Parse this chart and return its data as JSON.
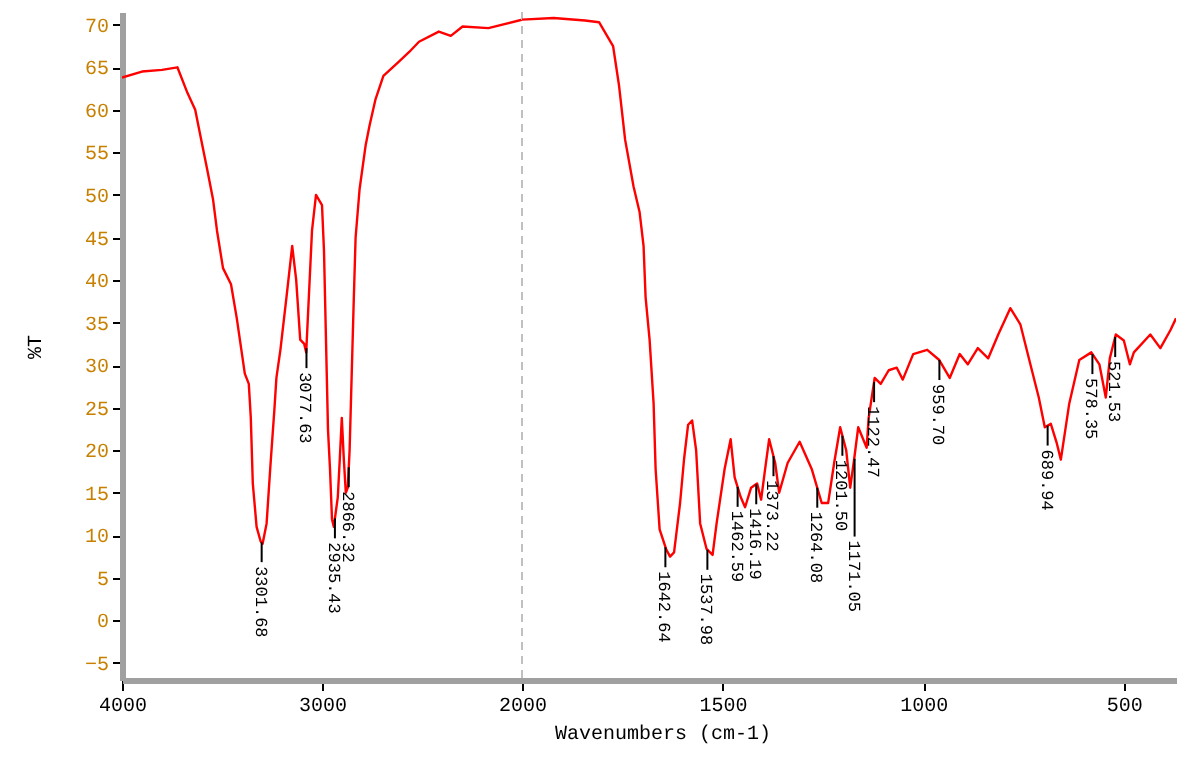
{
  "chart_data": [
    {
      "type": "line",
      "ylabel": "%T",
      "xlim": [
        4000,
        2000
      ],
      "ylim": [
        -7,
        71.5
      ],
      "xticks": [
        4000,
        3000,
        2000
      ],
      "yticks": [
        -5,
        0,
        5,
        10,
        15,
        20,
        25,
        30,
        35,
        40,
        45,
        50,
        55,
        60,
        65,
        70
      ],
      "grid": false,
      "marker": "none",
      "line_style": "solid",
      "ref_lines": [
        {
          "axis": "x",
          "value": 2000,
          "color": "#c0c0c0",
          "line_style": "dashed"
        }
      ],
      "series": [
        {
          "color": "#ff0000",
          "x": [
            4000,
            3900,
            3800,
            3723,
            3673,
            3634,
            3604,
            3574,
            3545,
            3525,
            3495,
            3455,
            3426,
            3386,
            3366,
            3356,
            3346,
            3327,
            3307,
            3297,
            3277,
            3257,
            3238,
            3228,
            3208,
            3178,
            3149,
            3129,
            3109,
            3089,
            3079,
            3050,
            3030,
            3000,
            2990,
            2970,
            2960,
            2950,
            2941,
            2921,
            2911,
            2901,
            2891,
            2881,
            2871,
            2862,
            2852,
            2842,
            2832,
            2812,
            2782,
            2762,
            2733,
            2693,
            2614,
            2564,
            2515,
            2416,
            2356,
            2297,
            2168,
            2000
          ],
          "values": [
            63.8,
            64.5,
            64.7,
            65,
            62,
            60,
            56.5,
            53,
            49.5,
            45.8,
            41.4,
            39.5,
            35.5,
            29,
            27.8,
            23.8,
            16.1,
            11,
            9.3,
            9,
            11.4,
            18.5,
            24.8,
            28.5,
            31.8,
            37.9,
            44,
            40,
            33,
            32.5,
            31.5,
            45.8,
            50,
            48.8,
            43.4,
            22.4,
            17.8,
            11.9,
            11,
            14.5,
            19,
            23.8,
            19,
            15,
            15.6,
            20,
            28.5,
            37,
            45,
            50.7,
            55.8,
            58.2,
            61.2,
            64,
            65.7,
            66.8,
            68,
            69.2,
            68.7,
            69.8,
            69.6,
            70.6
          ]
        }
      ],
      "annotations": [
        {
          "text": "3301.68",
          "x": 3301.68,
          "y": 9.2
        },
        {
          "text": "3077.63",
          "x": 3077.63,
          "y": 32
        },
        {
          "text": "2935.43",
          "x": 2935.43,
          "y": 12
        },
        {
          "text": "2866.32",
          "x": 2866.32,
          "y": 18
        }
      ]
    },
    {
      "type": "line",
      "xlabel": "Wavenumbers (cm-1)",
      "xlim": [
        2000,
        370
      ],
      "ylim": [
        -7,
        71.5
      ],
      "xticks": [
        1500,
        1000,
        500
      ],
      "tick_labels": "x",
      "grid": false,
      "marker": "none",
      "line_style": "solid",
      "series": [
        {
          "color": "#ff0000",
          "x": [
            2000,
            1921,
            1843,
            1808,
            1773,
            1758,
            1743,
            1722,
            1707,
            1697,
            1692,
            1682,
            1672,
            1667,
            1657,
            1641,
            1631,
            1621,
            1606,
            1596,
            1586,
            1576,
            1566,
            1556,
            1540,
            1525,
            1515,
            1495,
            1480,
            1470,
            1455,
            1444,
            1429,
            1414,
            1404,
            1394,
            1384,
            1369,
            1359,
            1338,
            1308,
            1278,
            1253,
            1237,
            1222,
            1207,
            1192,
            1182,
            1172,
            1162,
            1141,
            1136,
            1121,
            1106,
            1086,
            1066,
            1051,
            1025,
            990,
            960,
            934,
            909,
            889,
            864,
            838,
            813,
            783,
            758,
            733,
            712,
            697,
            682,
            667,
            657,
            636,
            611,
            581,
            561,
            545,
            535,
            520,
            500,
            485,
            475,
            434,
            409,
            384,
            370
          ],
          "values": [
            70.6,
            70.8,
            70.5,
            70.3,
            67.5,
            62.8,
            56.5,
            51,
            48,
            44,
            38,
            33,
            25.5,
            17.8,
            10.7,
            8.4,
            7.5,
            8,
            13.8,
            19,
            23,
            23.5,
            20,
            11.4,
            8.4,
            7.7,
            11.4,
            17.8,
            21.3,
            16.8,
            14.5,
            13.3,
            15.6,
            16.1,
            14.2,
            17.8,
            21.3,
            18.5,
            15,
            18.5,
            21,
            17.8,
            13.8,
            13.8,
            18.5,
            22.7,
            20,
            15.6,
            19,
            22.7,
            20.3,
            23.8,
            28.5,
            27.8,
            29.4,
            29.7,
            28.3,
            31.3,
            31.8,
            30.6,
            28.5,
            31.3,
            30.1,
            32,
            30.8,
            33.6,
            36.7,
            34.8,
            30.1,
            26.2,
            22.7,
            23.1,
            20.8,
            18.9,
            25.5,
            30.6,
            31.5,
            30.1,
            26.2,
            30.8,
            33.6,
            32.9,
            30.1,
            31.5,
            33.6,
            32,
            34.1,
            35.5
          ]
        }
      ],
      "annotations": [
        {
          "text": "1642.64",
          "x": 1642.64,
          "y": 8.6
        },
        {
          "text": "1537.98",
          "x": 1537.98,
          "y": 8.3
        },
        {
          "text": "1462.59",
          "x": 1462.59,
          "y": 15.7
        },
        {
          "text": "1416.19",
          "x": 1416.19,
          "y": 16
        },
        {
          "text": "1373.22",
          "x": 1373.22,
          "y": 19.3
        },
        {
          "text": "1264.08",
          "x": 1264.08,
          "y": 15.6
        },
        {
          "text": "1201.50",
          "x": 1201.5,
          "y": 21.7
        },
        {
          "text": "1171.05",
          "x": 1171.05,
          "y": 19
        },
        {
          "text": "1122.47",
          "x": 1122.47,
          "y": 28
        },
        {
          "text": "959.70",
          "x": 959.7,
          "y": 30.6
        },
        {
          "text": "689.94",
          "x": 689.94,
          "y": 22.9
        },
        {
          "text": "578.35",
          "x": 578.35,
          "y": 31.3
        },
        {
          "text": "521.53",
          "x": 521.53,
          "y": 33.3
        }
      ]
    }
  ]
}
